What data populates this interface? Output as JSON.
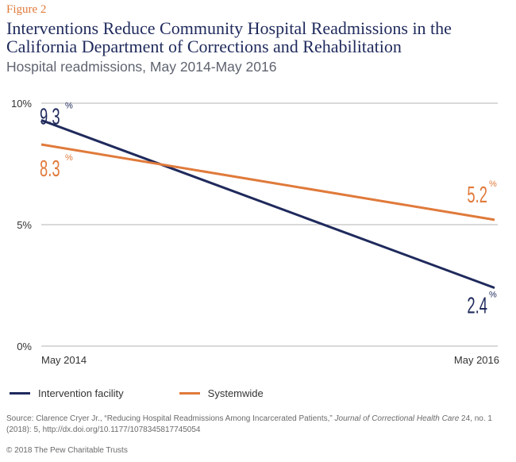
{
  "figure_label": "Figure 2",
  "title": "Interventions Reduce Community Hospital Readmissions in the California Department of Corrections and Rehabilitation",
  "subtitle": "Hospital readmissions, May 2014-May 2016",
  "colors": {
    "intervention": "#1f2a5c",
    "systemwide": "#e07a3b",
    "gridline": "#b3b3b3",
    "axis_text": "#333333"
  },
  "chart_data": {
    "type": "line",
    "x": [
      "May 2014",
      "May 2016"
    ],
    "series": [
      {
        "name": "Intervention facility",
        "values": [
          9.3,
          2.4
        ],
        "labels": [
          "9.3",
          "2.4"
        ]
      },
      {
        "name": "Systemwide",
        "values": [
          8.3,
          5.2
        ],
        "labels": [
          "8.3",
          "5.2"
        ]
      }
    ],
    "ylim": [
      0,
      10
    ],
    "y_ticks": [
      {
        "value": 10,
        "label": "10%"
      },
      {
        "value": 5,
        "label": "5%"
      },
      {
        "value": 0,
        "label": "0%"
      }
    ],
    "value_suffix": "%",
    "legend_position": "bottom-left",
    "grid": true
  },
  "source": {
    "prefix": "Source: Clarence Cryer Jr., “Reducing Hospital Readmissions Among Incarcerated Patients,” ",
    "journal": "Journal of Correctional Health Care",
    "suffix": " 24, no. 1 (2018): 5, http://dx.doi.org/10.1177/1078345817745054"
  },
  "copyright": "© 2018 The Pew Charitable Trusts"
}
